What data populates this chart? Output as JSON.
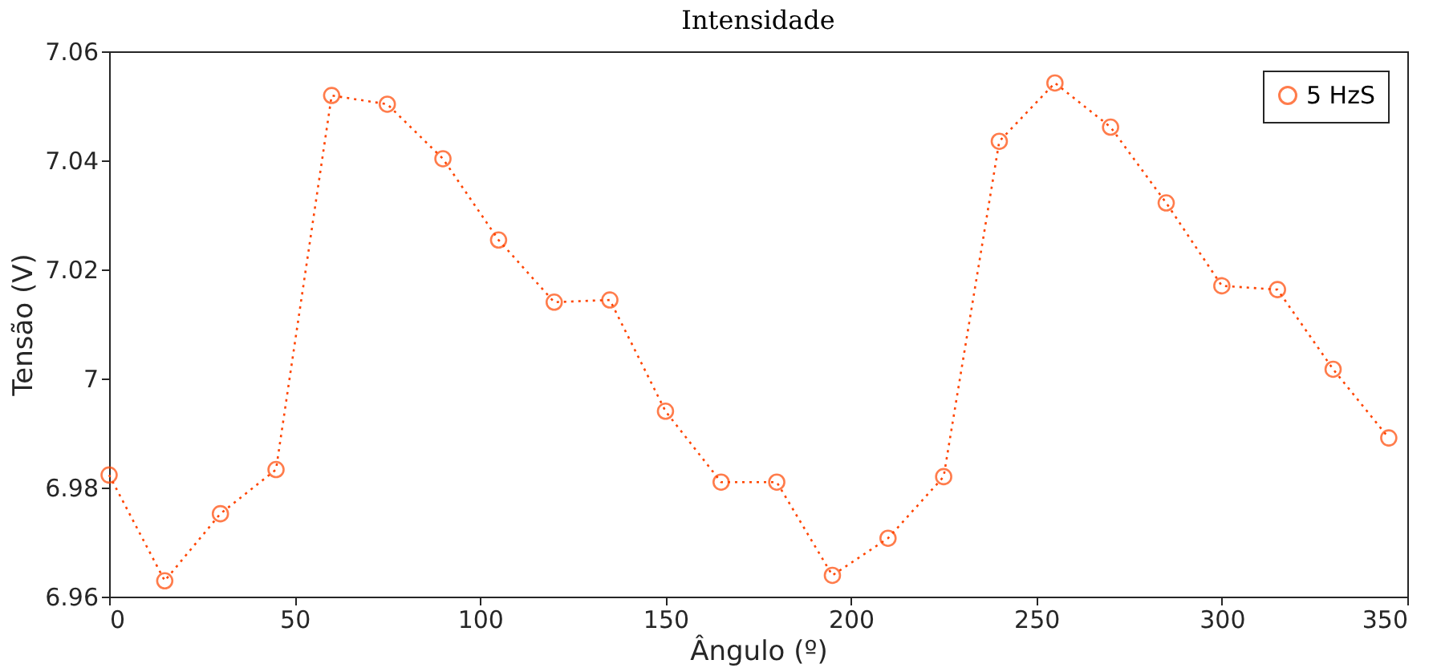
{
  "chart_data": {
    "type": "line",
    "title": "Intensidade",
    "xlabel": "Ângulo (º)",
    "ylabel": "Tensão (V)",
    "x": [
      0,
      15,
      30,
      45,
      60,
      75,
      90,
      105,
      120,
      135,
      150,
      165,
      180,
      195,
      210,
      225,
      240,
      255,
      270,
      285,
      300,
      315,
      330,
      345
    ],
    "series": [
      {
        "name": "5 HzS",
        "color": "#ff4500",
        "values": [
          6.9823,
          6.9629,
          6.9752,
          6.9833,
          7.0519,
          7.0503,
          7.0403,
          7.0254,
          7.014,
          7.0144,
          6.994,
          6.981,
          6.981,
          6.9639,
          6.9707,
          6.982,
          7.0435,
          7.0542,
          7.0461,
          7.0322,
          7.017,
          7.0163,
          7.0017,
          6.9891
        ]
      }
    ],
    "xlim": [
      0,
      350
    ],
    "xticks": [
      0,
      50,
      100,
      150,
      200,
      250,
      300,
      350
    ],
    "ylim": [
      6.96,
      7.06
    ],
    "yticks": [
      6.96,
      6.98,
      7,
      7.02,
      7.04,
      7.06
    ],
    "grid": false,
    "legend": "top right",
    "marker": "circle",
    "line_style": "dotted"
  }
}
